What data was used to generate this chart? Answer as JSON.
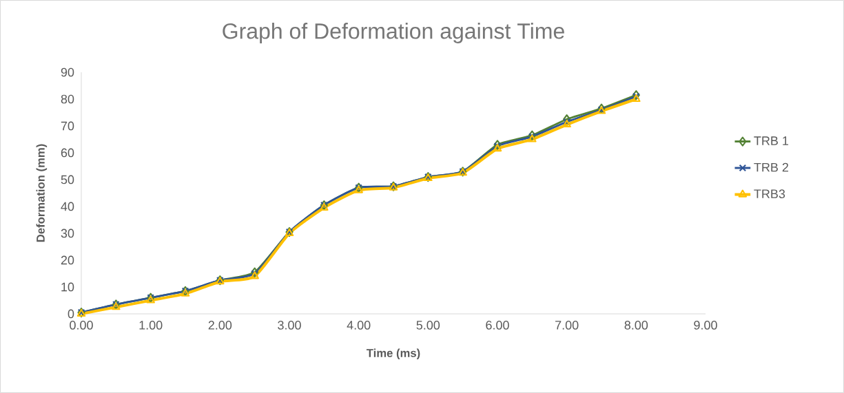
{
  "chart_data": {
    "type": "line",
    "title": "Graph of Deformation against Time",
    "xlabel": "Time (ms)",
    "ylabel": "Deformation (mm)",
    "x": [
      0,
      0.5,
      1,
      1.5,
      2,
      2.5,
      3,
      3.5,
      4,
      4.5,
      5,
      5.5,
      6,
      6.5,
      7,
      7.5,
      8
    ],
    "series": [
      {
        "name": "TRB 1",
        "color": "#548235",
        "marker": "diamond",
        "values": [
          0.5,
          3.5,
          6,
          8.5,
          12.5,
          15.5,
          30.5,
          40.5,
          47,
          47.5,
          51,
          53,
          63,
          66.5,
          72.5,
          76.5,
          81.5
        ]
      },
      {
        "name": "TRB 2",
        "color": "#2f5597",
        "marker": "cross",
        "values": [
          0.5,
          3.5,
          6,
          8.5,
          12.5,
          15,
          30.5,
          40.5,
          47,
          47.5,
          51,
          53,
          62.5,
          66,
          71.5,
          76,
          81
        ]
      },
      {
        "name": "TRB3",
        "color": "#ffc000",
        "marker": "triangle",
        "values": [
          0,
          2.5,
          5,
          7.5,
          12,
          14,
          30,
          39.5,
          46,
          47,
          50.5,
          52.5,
          61.5,
          65,
          70.5,
          75.5,
          80
        ]
      }
    ],
    "xlim": [
      0,
      9
    ],
    "ylim": [
      0,
      90
    ],
    "xticks": [
      {
        "value": 0,
        "label": "0.00"
      },
      {
        "value": 1,
        "label": "1.00"
      },
      {
        "value": 2,
        "label": "2.00"
      },
      {
        "value": 3,
        "label": "3.00"
      },
      {
        "value": 4,
        "label": "4.00"
      },
      {
        "value": 5,
        "label": "5.00"
      },
      {
        "value": 6,
        "label": "6.00"
      },
      {
        "value": 7,
        "label": "7.00"
      },
      {
        "value": 8,
        "label": "8.00"
      },
      {
        "value": 9,
        "label": "9.00"
      }
    ],
    "yticks": [
      0,
      10,
      20,
      30,
      40,
      50,
      60,
      70,
      80,
      90
    ],
    "grid": false,
    "legend": "right",
    "line_style": "solid"
  }
}
